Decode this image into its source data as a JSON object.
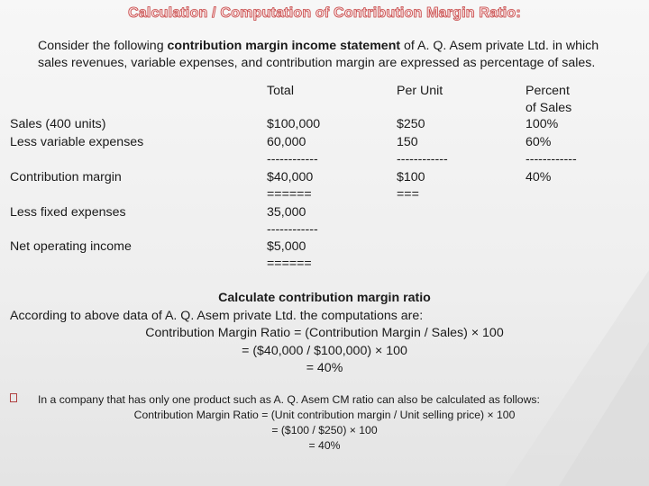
{
  "title": "Calculation / Computation of Contribution Margin Ratio:",
  "intro": {
    "before": "Consider the following ",
    "bold": "contribution margin income statement",
    "after": " of A. Q. Asem private Ltd. in which sales revenues, variable expenses, and contribution margin are expressed as percentage of sales."
  },
  "table": {
    "headers": {
      "total": "Total",
      "per_unit": "Per Unit",
      "percent_1": "Percent",
      "percent_2": "of Sales"
    },
    "rows": {
      "sales": {
        "label": "Sales (400 units)",
        "total": "$100,000",
        "per_unit": "$250",
        "percent": "100%"
      },
      "variable": {
        "label": "Less variable expenses",
        "total": "60,000",
        "per_unit": "150",
        "percent": "60%"
      },
      "dash_row": {
        "total": "------------",
        "per_unit": "------------",
        "percent": "------------"
      },
      "cm": {
        "label": "Contribution margin",
        "total": "$40,000",
        "per_unit": "$100",
        "percent": "40%"
      },
      "eq_row": {
        "total": "======",
        "per_unit": "==="
      },
      "fixed": {
        "label": "Less fixed expenses",
        "total": "35,000"
      },
      "dash_row2": {
        "total": "------------"
      },
      "noi": {
        "label": "Net operating income",
        "total": "$5,000"
      },
      "eq_row2": {
        "total": "======"
      }
    }
  },
  "calc": {
    "heading": "Calculate contribution margin ratio",
    "line1": "According to above data of A. Q. Asem private Ltd. the computations are:",
    "line2": "Contribution Margin Ratio = (Contribution Margin / Sales) × 100",
    "line3": "= ($40,000 / $100,000) × 100",
    "line4": "= 40%"
  },
  "bullet": {
    "line1": "In a company that has only one product such as A. Q. Asem CM ratio can also be calculated as follows:",
    "line2": "Contribution Margin Ratio = (Unit contribution margin / Unit selling price) × 100",
    "line3": "= ($100 / $250) × 100",
    "line4": "= 40%"
  }
}
